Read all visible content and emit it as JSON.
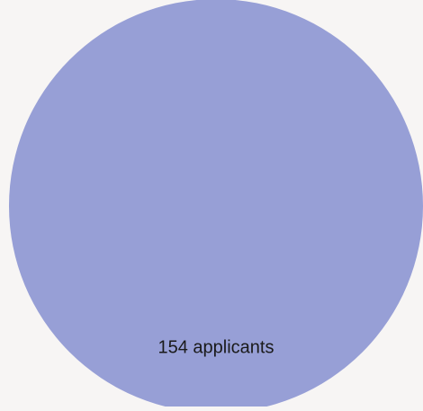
{
  "background_color": "#f7f5f4",
  "chart_data": {
    "type": "pie",
    "slices": [
      {
        "label": "154 applicants",
        "value": 154,
        "color": "#979fd6"
      }
    ],
    "title": "",
    "legend": "none"
  }
}
